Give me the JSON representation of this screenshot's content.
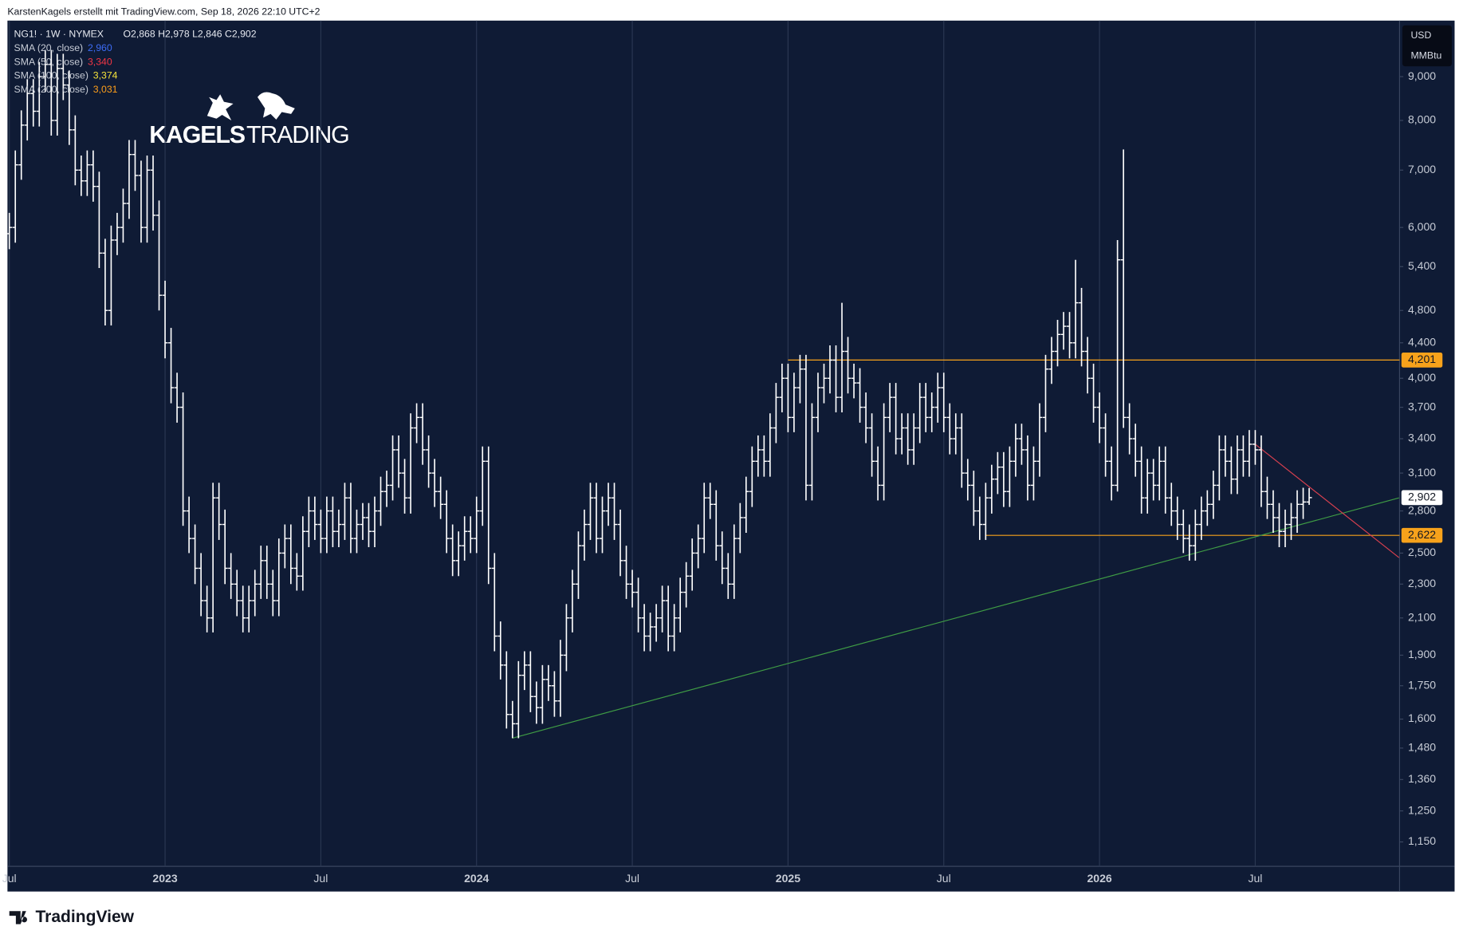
{
  "header": {
    "caption": "KarstenKagels erstellt mit TradingView.com, Sep 18, 2026 22:10 UTC+2"
  },
  "footer": {
    "brand": "TradingView"
  },
  "logo": {
    "word1": "KAGELS",
    "word2": "TRADING"
  },
  "chart_data": {
    "type": "ohlc",
    "symbol": "NG1! · 1W · NYMEX",
    "ohlc_readout": "O2,868  H2,978  L2,846  C2,902",
    "indicators": [
      {
        "name": "SMA (20, close)",
        "value_label": "2,960",
        "color": "#3d6cf5"
      },
      {
        "name": "SMA (50, close)",
        "value_label": "3,340",
        "color": "#f23645"
      },
      {
        "name": "SMA (100, close)",
        "value_label": "3,374",
        "color": "#f5e33b"
      },
      {
        "name": "SMA (200, close)",
        "value_label": "3,031",
        "color": "#ff9f1a"
      }
    ],
    "currency": "USD",
    "unit": "MMBtu",
    "log_scale": true,
    "bar_color": "#ffffff",
    "ylim": [
      1.077,
      10.463
    ],
    "yticks": [
      {
        "value": 9.0,
        "label": "9,000"
      },
      {
        "value": 8.0,
        "label": "8,000"
      },
      {
        "value": 7.0,
        "label": "7,000"
      },
      {
        "value": 6.0,
        "label": "6,000"
      },
      {
        "value": 5.4,
        "label": "5,400"
      },
      {
        "value": 4.8,
        "label": "4,800"
      },
      {
        "value": 4.4,
        "label": "4,400"
      },
      {
        "value": 4.0,
        "label": "4,000"
      },
      {
        "value": 3.7,
        "label": "3,700"
      },
      {
        "value": 3.4,
        "label": "3,400"
      },
      {
        "value": 3.1,
        "label": "3,100"
      },
      {
        "value": 2.8,
        "label": "2,800"
      },
      {
        "value": 2.5,
        "label": "2,500"
      },
      {
        "value": 2.3,
        "label": "2,300"
      },
      {
        "value": 2.1,
        "label": "2,100"
      },
      {
        "value": 1.9,
        "label": "1,900"
      },
      {
        "value": 1.75,
        "label": "1,750"
      },
      {
        "value": 1.6,
        "label": "1,600"
      },
      {
        "value": 1.48,
        "label": "1,480"
      },
      {
        "value": 1.36,
        "label": "1,360"
      },
      {
        "value": 1.25,
        "label": "1,250"
      },
      {
        "value": 1.15,
        "label": "1,150"
      }
    ],
    "categories": [
      "Jul",
      null,
      null,
      null,
      null,
      null,
      null,
      null,
      null,
      null,
      null,
      null,
      null,
      null,
      null,
      null,
      null,
      null,
      null,
      null,
      null,
      null,
      null,
      null,
      null,
      null,
      "2023",
      null,
      null,
      null,
      null,
      null,
      null,
      null,
      null,
      null,
      null,
      null,
      null,
      null,
      null,
      null,
      null,
      null,
      null,
      null,
      null,
      null,
      null,
      null,
      null,
      null,
      "Jul",
      null,
      null,
      null,
      null,
      null,
      null,
      null,
      null,
      null,
      null,
      null,
      null,
      null,
      null,
      null,
      null,
      null,
      null,
      null,
      null,
      null,
      null,
      null,
      null,
      null,
      "2024",
      null,
      null,
      null,
      null,
      null,
      null,
      null,
      null,
      null,
      null,
      null,
      null,
      null,
      null,
      null,
      null,
      null,
      null,
      null,
      null,
      null,
      null,
      null,
      null,
      null,
      "Jul",
      null,
      null,
      null,
      null,
      null,
      null,
      null,
      null,
      null,
      null,
      null,
      null,
      null,
      null,
      null,
      null,
      null,
      null,
      null,
      null,
      null,
      null,
      null,
      null,
      null,
      "2025",
      null,
      null,
      null,
      null,
      null,
      null,
      null,
      null,
      null,
      null,
      null,
      null,
      null,
      null,
      null,
      null,
      null,
      null,
      null,
      null,
      null,
      null,
      null,
      null,
      null,
      "Jul",
      null,
      null,
      null,
      null,
      null,
      null,
      null,
      null,
      null,
      null,
      null,
      null,
      null,
      null,
      null,
      null,
      null,
      null,
      null,
      null,
      null,
      null,
      null,
      null,
      null,
      "2026",
      null,
      null,
      null,
      null,
      null,
      null,
      null,
      null,
      null,
      null,
      null,
      null,
      null,
      null,
      null,
      null,
      null,
      null,
      null,
      null,
      null,
      null,
      null,
      null,
      null,
      "Jul",
      null,
      null,
      null,
      null,
      null,
      null,
      null,
      null,
      null,
      null,
      null,
      null,
      null,
      null,
      null,
      null,
      null,
      null,
      null,
      null,
      null,
      null,
      null
    ],
    "open": [
      5.9,
      6.0,
      7.1,
      7.9,
      8.6,
      8.2,
      9.0,
      9.3,
      8.0,
      9.2,
      8.8,
      7.8,
      7.0,
      6.8,
      7.1,
      6.7,
      5.6,
      4.8,
      5.8,
      6.0,
      6.4,
      7.3,
      6.9,
      6.0,
      7.0,
      6.2,
      5.0,
      4.4,
      3.9,
      3.7,
      2.8,
      2.6,
      2.4,
      2.2,
      2.1,
      2.9,
      2.7,
      2.4,
      2.3,
      2.2,
      2.1,
      2.2,
      2.3,
      2.45,
      2.3,
      2.2,
      2.5,
      2.6,
      2.4,
      2.35,
      2.65,
      2.8,
      2.7,
      2.6,
      2.8,
      2.65,
      2.7,
      2.9,
      2.6,
      2.7,
      2.75,
      2.65,
      2.8,
      2.95,
      3.0,
      3.3,
      3.1,
      2.9,
      3.5,
      3.6,
      3.3,
      3.1,
      2.95,
      2.85,
      2.6,
      2.45,
      2.55,
      2.65,
      2.6,
      2.8,
      3.2,
      2.4,
      2.0,
      1.85,
      1.62,
      1.58,
      1.8,
      1.85,
      1.7,
      1.65,
      1.78,
      1.75,
      1.68,
      1.9,
      2.1,
      2.3,
      2.55,
      2.7,
      2.9,
      2.6,
      2.8,
      2.9,
      2.7,
      2.45,
      2.3,
      2.25,
      2.1,
      2.0,
      2.05,
      2.1,
      2.2,
      2.0,
      2.1,
      2.25,
      2.35,
      2.5,
      2.6,
      2.9,
      2.85,
      2.55,
      2.4,
      2.3,
      2.6,
      2.75,
      2.95,
      3.2,
      3.3,
      3.2,
      3.5,
      3.8,
      4.0,
      3.6,
      3.9,
      4.1,
      3.0,
      3.6,
      3.9,
      4.0,
      4.2,
      3.8,
      4.3,
      4.0,
      3.95,
      3.7,
      3.5,
      3.2,
      3.0,
      3.6,
      3.8,
      3.4,
      3.5,
      3.3,
      3.5,
      3.8,
      3.6,
      3.7,
      3.9,
      3.6,
      3.4,
      3.5,
      3.1,
      3.0,
      2.8,
      2.7,
      2.9,
      3.05,
      3.15,
      2.95,
      3.2,
      3.4,
      3.3,
      3.0,
      3.2,
      3.6,
      4.1,
      4.3,
      4.5,
      4.6,
      4.4,
      4.9,
      4.3,
      4.0,
      3.7,
      3.5,
      3.2,
      3.0,
      5.5,
      3.6,
      3.4,
      3.2,
      2.9,
      3.1,
      3.0,
      3.2,
      2.9,
      2.8,
      2.7,
      2.6,
      2.55,
      2.7,
      2.8,
      2.85,
      3.0,
      3.3,
      3.2,
      3.05,
      3.3,
      3.2,
      3.35,
      3.3,
      2.95,
      2.85,
      2.75,
      2.65,
      2.7,
      2.75,
      2.85,
      2.868,
      null,
      null,
      null,
      null,
      null,
      null,
      null,
      null,
      null,
      null,
      null,
      null,
      null,
      null
    ],
    "high": [
      6.24,
      7.38,
      8.22,
      8.94,
      8.94,
      9.36,
      9.67,
      9.67,
      9.57,
      9.57,
      9.15,
      8.11,
      7.28,
      7.38,
      7.38,
      6.97,
      5.82,
      6.03,
      6.24,
      6.66,
      7.59,
      7.59,
      7.18,
      7.28,
      7.28,
      6.45,
      5.2,
      4.58,
      4.06,
      3.85,
      2.91,
      2.7,
      2.5,
      2.29,
      3.02,
      3.02,
      2.81,
      2.5,
      2.39,
      2.29,
      2.29,
      2.39,
      2.55,
      2.55,
      2.39,
      2.6,
      2.7,
      2.7,
      2.5,
      2.76,
      2.91,
      2.91,
      2.81,
      2.91,
      2.91,
      2.81,
      3.02,
      3.02,
      2.81,
      2.86,
      2.86,
      2.91,
      3.07,
      3.12,
      3.43,
      3.43,
      3.22,
      3.64,
      3.74,
      3.74,
      3.43,
      3.22,
      3.07,
      2.96,
      2.7,
      2.65,
      2.76,
      2.76,
      2.91,
      3.33,
      3.33,
      2.5,
      2.08,
      1.92,
      1.68,
      1.87,
      1.92,
      1.92,
      1.77,
      1.85,
      1.85,
      1.82,
      1.98,
      2.18,
      2.39,
      2.65,
      2.81,
      3.02,
      3.02,
      2.91,
      3.02,
      3.02,
      2.81,
      2.55,
      2.39,
      2.34,
      2.18,
      2.13,
      2.18,
      2.29,
      2.29,
      2.18,
      2.34,
      2.44,
      2.6,
      2.7,
      3.02,
      3.02,
      2.96,
      2.65,
      2.5,
      2.7,
      2.86,
      3.07,
      3.33,
      3.43,
      3.43,
      3.64,
      3.95,
      4.16,
      4.16,
      4.06,
      4.26,
      4.26,
      3.74,
      4.06,
      4.16,
      4.37,
      4.37,
      4.9,
      4.47,
      4.16,
      4.11,
      3.85,
      3.64,
      3.33,
      3.74,
      3.95,
      3.95,
      3.64,
      3.64,
      3.64,
      3.95,
      3.95,
      3.85,
      4.06,
      4.06,
      3.74,
      3.64,
      3.64,
      3.22,
      3.12,
      2.91,
      3.02,
      3.17,
      3.28,
      3.28,
      3.33,
      3.54,
      3.54,
      3.43,
      3.33,
      3.74,
      4.26,
      4.47,
      4.68,
      4.78,
      4.78,
      5.5,
      5.1,
      4.47,
      4.16,
      3.85,
      3.64,
      3.33,
      5.8,
      7.4,
      3.74,
      3.54,
      3.33,
      3.22,
      3.22,
      3.33,
      3.33,
      3.02,
      2.91,
      2.81,
      2.7,
      2.81,
      2.91,
      2.96,
      3.12,
      3.43,
      3.43,
      3.33,
      3.43,
      3.43,
      3.48,
      3.48,
      3.43,
      3.07,
      2.96,
      2.86,
      2.81,
      2.86,
      2.96,
      2.98,
      2.978,
      null,
      null,
      null,
      null,
      null,
      null,
      null,
      null,
      null,
      null,
      null,
      null,
      null,
      null
    ],
    "low": [
      5.66,
      5.76,
      6.82,
      7.58,
      7.87,
      7.87,
      8.64,
      7.68,
      7.68,
      8.45,
      7.49,
      6.72,
      6.53,
      6.53,
      6.43,
      5.38,
      4.61,
      4.61,
      5.57,
      5.76,
      6.14,
      6.62,
      5.76,
      5.76,
      5.95,
      4.8,
      4.22,
      3.74,
      3.55,
      2.69,
      2.5,
      2.3,
      2.11,
      2.02,
      2.02,
      2.59,
      2.3,
      2.21,
      2.11,
      2.02,
      2.02,
      2.11,
      2.21,
      2.21,
      2.11,
      2.11,
      2.4,
      2.3,
      2.26,
      2.26,
      2.54,
      2.59,
      2.5,
      2.5,
      2.54,
      2.54,
      2.59,
      2.5,
      2.5,
      2.59,
      2.54,
      2.54,
      2.69,
      2.83,
      2.88,
      2.98,
      2.78,
      2.78,
      3.36,
      3.17,
      2.98,
      2.83,
      2.74,
      2.5,
      2.35,
      2.35,
      2.45,
      2.5,
      2.5,
      2.69,
      2.3,
      1.92,
      1.78,
      1.56,
      1.52,
      1.52,
      1.73,
      1.63,
      1.58,
      1.58,
      1.68,
      1.61,
      1.61,
      1.82,
      2.02,
      2.21,
      2.45,
      2.59,
      2.5,
      2.5,
      2.69,
      2.59,
      2.35,
      2.21,
      2.16,
      2.02,
      1.92,
      1.92,
      1.97,
      2.02,
      1.92,
      1.92,
      2.02,
      2.16,
      2.26,
      2.4,
      2.5,
      2.74,
      2.45,
      2.3,
      2.21,
      2.21,
      2.5,
      2.64,
      2.83,
      3.07,
      3.07,
      3.07,
      3.36,
      3.65,
      3.46,
      3.46,
      3.74,
      2.88,
      2.88,
      3.46,
      3.74,
      3.84,
      3.65,
      3.65,
      3.84,
      3.79,
      3.55,
      3.36,
      3.07,
      2.88,
      2.88,
      3.46,
      3.26,
      3.26,
      3.17,
      3.17,
      3.36,
      3.46,
      3.46,
      3.55,
      3.46,
      3.26,
      3.26,
      2.98,
      2.88,
      2.69,
      2.59,
      2.59,
      2.78,
      2.93,
      2.83,
      2.83,
      3.07,
      3.17,
      2.88,
      2.88,
      3.07,
      3.46,
      3.94,
      4.13,
      4.32,
      4.22,
      4.22,
      4.13,
      3.84,
      3.55,
      3.36,
      3.07,
      2.88,
      2.95,
      3.5,
      3.26,
      3.07,
      2.78,
      2.78,
      2.88,
      2.88,
      2.78,
      2.69,
      2.59,
      2.5,
      2.45,
      2.45,
      2.59,
      2.69,
      2.74,
      2.88,
      3.07,
      2.93,
      2.93,
      3.07,
      3.07,
      3.17,
      2.83,
      2.74,
      2.64,
      2.54,
      2.54,
      2.59,
      2.64,
      2.74,
      2.846,
      null,
      null,
      null,
      null,
      null,
      null,
      null,
      null,
      null,
      null,
      null,
      null,
      null,
      null
    ],
    "close": [
      6.0,
      7.1,
      7.9,
      8.6,
      8.2,
      9.0,
      9.3,
      8.0,
      9.2,
      8.8,
      7.8,
      7.0,
      6.8,
      7.1,
      6.7,
      5.6,
      4.8,
      5.8,
      6.0,
      6.4,
      7.3,
      6.9,
      6.0,
      7.0,
      6.2,
      5.0,
      4.4,
      3.9,
      3.7,
      2.8,
      2.6,
      2.4,
      2.2,
      2.1,
      2.9,
      2.7,
      2.4,
      2.3,
      2.2,
      2.1,
      2.2,
      2.3,
      2.45,
      2.3,
      2.2,
      2.5,
      2.6,
      2.4,
      2.35,
      2.65,
      2.8,
      2.7,
      2.6,
      2.8,
      2.65,
      2.7,
      2.9,
      2.6,
      2.7,
      2.75,
      2.65,
      2.8,
      2.95,
      3.0,
      3.3,
      3.1,
      2.9,
      3.5,
      3.6,
      3.3,
      3.1,
      2.95,
      2.85,
      2.6,
      2.45,
      2.55,
      2.65,
      2.6,
      2.8,
      3.2,
      2.4,
      2.0,
      1.85,
      1.62,
      1.58,
      1.8,
      1.85,
      1.7,
      1.65,
      1.78,
      1.75,
      1.68,
      1.9,
      2.1,
      2.3,
      2.55,
      2.7,
      2.9,
      2.6,
      2.8,
      2.9,
      2.7,
      2.45,
      2.3,
      2.25,
      2.1,
      2.0,
      2.05,
      2.1,
      2.2,
      2.0,
      2.1,
      2.25,
      2.35,
      2.5,
      2.6,
      2.9,
      2.85,
      2.55,
      2.4,
      2.3,
      2.6,
      2.75,
      2.95,
      3.2,
      3.3,
      3.2,
      3.5,
      3.8,
      4.0,
      3.6,
      3.9,
      4.1,
      3.0,
      3.6,
      3.9,
      4.0,
      4.2,
      3.8,
      4.3,
      4.0,
      3.95,
      3.7,
      3.5,
      3.2,
      3.0,
      3.6,
      3.8,
      3.4,
      3.5,
      3.3,
      3.5,
      3.8,
      3.6,
      3.7,
      3.9,
      3.6,
      3.4,
      3.5,
      3.1,
      3.0,
      2.8,
      2.7,
      2.9,
      3.05,
      3.15,
      2.95,
      3.2,
      3.4,
      3.3,
      3.0,
      3.2,
      3.6,
      4.1,
      4.3,
      4.5,
      4.6,
      4.4,
      4.9,
      4.3,
      4.0,
      3.7,
      3.5,
      3.2,
      3.0,
      5.5,
      3.6,
      3.4,
      3.2,
      2.9,
      3.1,
      3.0,
      3.2,
      2.9,
      2.8,
      2.7,
      2.6,
      2.55,
      2.7,
      2.8,
      2.85,
      3.0,
      3.3,
      3.2,
      3.05,
      3.3,
      3.2,
      3.35,
      3.3,
      2.95,
      2.85,
      2.75,
      2.65,
      2.7,
      2.75,
      2.85,
      2.868,
      2.902,
      null,
      null,
      null,
      null,
      null,
      null,
      null,
      null,
      null,
      null,
      null,
      null,
      null,
      null
    ],
    "last_price": {
      "value": 2.902,
      "label": "2,902"
    },
    "levels": [
      {
        "value": 4.201,
        "label": "4,201",
        "color": "#f7a21b",
        "start_index": 130
      },
      {
        "value": 2.622,
        "label": "2,622",
        "color": "#f7a21b",
        "start_index": 163
      }
    ],
    "trendlines": [
      {
        "color": "#3f9c45",
        "from": [
          84,
          1.52
        ],
        "to": [
          232,
          2.9
        ]
      },
      {
        "color": "#d9404f",
        "from": [
          208,
          3.35
        ],
        "to": [
          232,
          2.47
        ]
      }
    ],
    "grid": true
  }
}
